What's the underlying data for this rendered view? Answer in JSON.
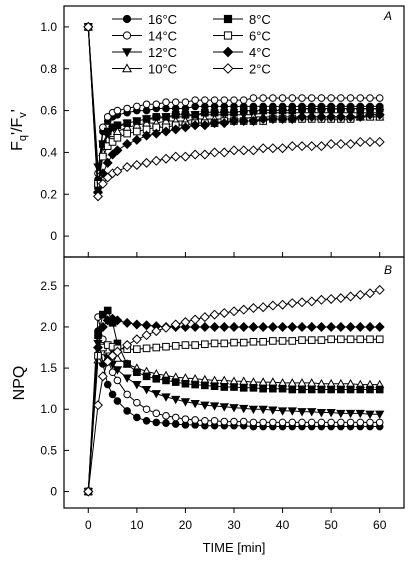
{
  "figure": {
    "x_axis": {
      "label": "TIME [min]",
      "ticks": [
        0,
        10,
        20,
        30,
        40,
        50,
        60
      ],
      "range": [
        -5,
        65
      ]
    },
    "legend_position": "top-right",
    "series_styles": [
      {
        "name": "16°C",
        "marker": "circle",
        "fill": "#000000"
      },
      {
        "name": "14°C",
        "marker": "circle",
        "fill": "#ffffff"
      },
      {
        "name": "12°C",
        "marker": "triangle-down",
        "fill": "#000000"
      },
      {
        "name": "10°C",
        "marker": "triangle-up",
        "fill": "#ffffff"
      },
      {
        "name": "8°C",
        "marker": "square",
        "fill": "#000000"
      },
      {
        "name": "6°C",
        "marker": "square",
        "fill": "#ffffff"
      },
      {
        "name": "4°C",
        "marker": "diamond",
        "fill": "#000000"
      },
      {
        "name": "2°C",
        "marker": "diamond",
        "fill": "#ffffff"
      }
    ]
  },
  "chart_data": [
    {
      "type": "line",
      "panel_label": "A",
      "ylabel_main": "F",
      "ylabel_sub_q": "q",
      "ylabel_mid": "'/F",
      "ylabel_sub_v": "v",
      "ylabel_end": "'",
      "xlabel": "TIME [min]",
      "ylim": [
        -0.1,
        1.1
      ],
      "yticks": [
        "0",
        "0.2",
        "0.4",
        "0.6",
        "0.8",
        "1.0"
      ],
      "ytick_values": [
        0,
        0.2,
        0.4,
        0.6,
        0.8,
        1.0
      ],
      "grid": false,
      "legend": "top-right",
      "x": [
        0,
        2,
        3,
        4,
        5,
        6,
        8,
        10,
        12,
        14,
        16,
        18,
        20,
        22,
        24,
        26,
        28,
        30,
        32,
        34,
        36,
        38,
        40,
        42,
        44,
        46,
        48,
        50,
        52,
        54,
        56,
        58,
        60
      ],
      "series": [
        {
          "name": "16°C",
          "values": [
            1.0,
            0.27,
            0.5,
            0.55,
            0.57,
            0.58,
            0.59,
            0.6,
            0.6,
            0.61,
            0.61,
            0.61,
            0.61,
            0.62,
            0.62,
            0.62,
            0.62,
            0.62,
            0.62,
            0.62,
            0.62,
            0.62,
            0.62,
            0.62,
            0.62,
            0.62,
            0.62,
            0.62,
            0.62,
            0.62,
            0.62,
            0.62,
            0.62
          ]
        },
        {
          "name": "14°C",
          "values": [
            1.0,
            0.3,
            0.52,
            0.57,
            0.59,
            0.6,
            0.61,
            0.62,
            0.63,
            0.63,
            0.64,
            0.64,
            0.64,
            0.65,
            0.65,
            0.65,
            0.65,
            0.65,
            0.65,
            0.66,
            0.66,
            0.66,
            0.66,
            0.66,
            0.66,
            0.66,
            0.66,
            0.66,
            0.66,
            0.66,
            0.66,
            0.66,
            0.66
          ]
        },
        {
          "name": "12°C",
          "values": [
            1.0,
            0.33,
            0.44,
            0.48,
            0.51,
            0.52,
            0.54,
            0.55,
            0.56,
            0.56,
            0.57,
            0.57,
            0.57,
            0.58,
            0.58,
            0.58,
            0.58,
            0.58,
            0.58,
            0.58,
            0.59,
            0.59,
            0.59,
            0.59,
            0.59,
            0.59,
            0.59,
            0.59,
            0.59,
            0.59,
            0.59,
            0.59,
            0.59
          ]
        },
        {
          "name": "10°C",
          "values": [
            1.0,
            0.22,
            0.4,
            0.46,
            0.49,
            0.5,
            0.52,
            0.53,
            0.54,
            0.54,
            0.55,
            0.55,
            0.55,
            0.56,
            0.56,
            0.56,
            0.56,
            0.56,
            0.56,
            0.57,
            0.57,
            0.57,
            0.57,
            0.57,
            0.57,
            0.57,
            0.57,
            0.57,
            0.57,
            0.57,
            0.57,
            0.57,
            0.57
          ]
        },
        {
          "name": "8°C",
          "values": [
            1.0,
            0.24,
            0.44,
            0.5,
            0.52,
            0.53,
            0.54,
            0.55,
            0.56,
            0.57,
            0.57,
            0.58,
            0.58,
            0.58,
            0.59,
            0.59,
            0.59,
            0.59,
            0.6,
            0.6,
            0.6,
            0.6,
            0.6,
            0.6,
            0.61,
            0.61,
            0.61,
            0.61,
            0.61,
            0.61,
            0.61,
            0.61,
            0.61
          ]
        },
        {
          "name": "6°C",
          "values": [
            1.0,
            0.25,
            0.38,
            0.43,
            0.45,
            0.47,
            0.49,
            0.5,
            0.51,
            0.52,
            0.52,
            0.53,
            0.53,
            0.54,
            0.54,
            0.54,
            0.55,
            0.55,
            0.55,
            0.55,
            0.55,
            0.56,
            0.56,
            0.56,
            0.56,
            0.56,
            0.56,
            0.56,
            0.56,
            0.56,
            0.57,
            0.57,
            0.57
          ]
        },
        {
          "name": "4°C",
          "values": [
            1.0,
            0.21,
            0.3,
            0.35,
            0.39,
            0.41,
            0.44,
            0.46,
            0.48,
            0.49,
            0.5,
            0.51,
            0.52,
            0.53,
            0.53,
            0.54,
            0.54,
            0.55,
            0.55,
            0.55,
            0.56,
            0.56,
            0.56,
            0.56,
            0.57,
            0.57,
            0.57,
            0.57,
            0.57,
            0.57,
            0.57,
            0.58,
            0.58
          ]
        },
        {
          "name": "2°C",
          "values": [
            1.0,
            0.19,
            0.25,
            0.28,
            0.3,
            0.31,
            0.33,
            0.34,
            0.35,
            0.36,
            0.37,
            0.38,
            0.38,
            0.39,
            0.39,
            0.4,
            0.4,
            0.41,
            0.41,
            0.41,
            0.42,
            0.42,
            0.42,
            0.43,
            0.43,
            0.43,
            0.43,
            0.44,
            0.44,
            0.44,
            0.45,
            0.45,
            0.45
          ]
        }
      ]
    },
    {
      "type": "line",
      "panel_label": "B",
      "ylabel": "NPQ",
      "xlabel": "TIME [min]",
      "ylim": [
        -0.2,
        2.85
      ],
      "yticks": [
        "0",
        "0.5",
        "1.0",
        "1.5",
        "2.0",
        "2.5"
      ],
      "ytick_values": [
        0,
        0.5,
        1.0,
        1.5,
        2.0,
        2.5
      ],
      "grid": false,
      "x": [
        0,
        2,
        3,
        4,
        5,
        6,
        8,
        10,
        12,
        14,
        16,
        18,
        20,
        22,
        24,
        26,
        28,
        30,
        32,
        34,
        36,
        38,
        40,
        42,
        44,
        46,
        48,
        50,
        52,
        54,
        56,
        58,
        60
      ],
      "series": [
        {
          "name": "16°C",
          "values": [
            0,
            1.95,
            1.55,
            1.3,
            1.18,
            1.1,
            0.98,
            0.9,
            0.86,
            0.84,
            0.83,
            0.82,
            0.81,
            0.81,
            0.8,
            0.8,
            0.8,
            0.8,
            0.8,
            0.79,
            0.79,
            0.79,
            0.79,
            0.79,
            0.79,
            0.79,
            0.79,
            0.79,
            0.79,
            0.79,
            0.79,
            0.79,
            0.79
          ]
        },
        {
          "name": "14°C",
          "values": [
            0,
            2.12,
            1.85,
            1.6,
            1.45,
            1.35,
            1.18,
            1.08,
            1.0,
            0.95,
            0.92,
            0.9,
            0.88,
            0.87,
            0.86,
            0.86,
            0.85,
            0.85,
            0.85,
            0.84,
            0.84,
            0.84,
            0.84,
            0.84,
            0.84,
            0.84,
            0.84,
            0.84,
            0.84,
            0.84,
            0.84,
            0.84,
            0.84
          ]
        },
        {
          "name": "12°C",
          "values": [
            0,
            1.8,
            1.72,
            1.62,
            1.55,
            1.48,
            1.38,
            1.3,
            1.24,
            1.19,
            1.15,
            1.12,
            1.09,
            1.07,
            1.05,
            1.04,
            1.03,
            1.02,
            1.01,
            1.0,
            1.0,
            0.99,
            0.98,
            0.98,
            0.97,
            0.97,
            0.96,
            0.96,
            0.95,
            0.95,
            0.95,
            0.94,
            0.94
          ]
        },
        {
          "name": "10°C",
          "values": [
            0,
            1.6,
            1.7,
            1.72,
            1.68,
            1.62,
            1.55,
            1.5,
            1.46,
            1.43,
            1.41,
            1.39,
            1.38,
            1.37,
            1.36,
            1.35,
            1.35,
            1.34,
            1.34,
            1.33,
            1.33,
            1.33,
            1.32,
            1.32,
            1.32,
            1.32,
            1.31,
            1.31,
            1.31,
            1.31,
            1.3,
            1.3,
            1.3
          ]
        },
        {
          "name": "8°C",
          "values": [
            0,
            1.9,
            2.15,
            2.2,
            2.05,
            1.8,
            1.55,
            1.45,
            1.4,
            1.37,
            1.35,
            1.33,
            1.31,
            1.3,
            1.29,
            1.28,
            1.27,
            1.27,
            1.26,
            1.26,
            1.25,
            1.25,
            1.25,
            1.24,
            1.24,
            1.24,
            1.24,
            1.24,
            1.24,
            1.24,
            1.24,
            1.24,
            1.24
          ]
        },
        {
          "name": "6°C",
          "values": [
            0,
            1.65,
            1.75,
            1.78,
            1.76,
            1.74,
            1.73,
            1.73,
            1.74,
            1.75,
            1.76,
            1.77,
            1.78,
            1.78,
            1.79,
            1.8,
            1.8,
            1.81,
            1.81,
            1.82,
            1.82,
            1.83,
            1.83,
            1.83,
            1.84,
            1.84,
            1.84,
            1.85,
            1.85,
            1.85,
            1.85,
            1.85,
            1.85
          ]
        },
        {
          "name": "4°C",
          "values": [
            0,
            1.75,
            2.0,
            2.08,
            2.1,
            2.08,
            2.05,
            2.03,
            2.02,
            2.01,
            2.0,
            2.0,
            2.0,
            2.0,
            2.0,
            2.0,
            2.0,
            2.0,
            2.0,
            2.0,
            2.0,
            2.0,
            2.0,
            2.0,
            2.0,
            2.0,
            2.0,
            2.0,
            2.0,
            2.0,
            2.0,
            2.0,
            2.0
          ]
        },
        {
          "name": "2°C",
          "values": [
            0,
            1.05,
            1.4,
            1.58,
            1.65,
            1.7,
            1.78,
            1.85,
            1.9,
            1.95,
            1.99,
            2.03,
            2.06,
            2.09,
            2.12,
            2.15,
            2.17,
            2.19,
            2.21,
            2.23,
            2.24,
            2.26,
            2.27,
            2.29,
            2.3,
            2.31,
            2.33,
            2.34,
            2.35,
            2.37,
            2.39,
            2.41,
            2.45
          ]
        }
      ]
    }
  ]
}
